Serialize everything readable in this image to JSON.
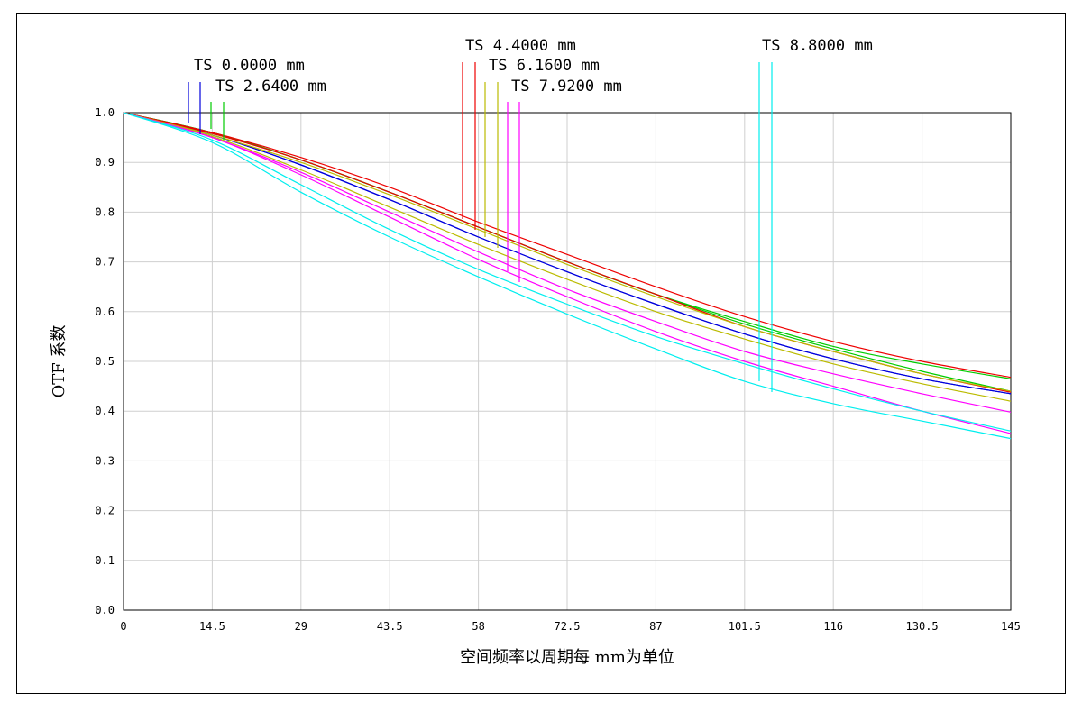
{
  "chart_data": {
    "type": "line",
    "title": "",
    "xlabel": "空间频率以周期每 mm为单位",
    "ylabel": "OTF 系数",
    "xlim": [
      0,
      145
    ],
    "ylim": [
      0,
      1.0
    ],
    "x_ticks": [
      0,
      14.5,
      29,
      43.5,
      58,
      72.5,
      87,
      101.5,
      116,
      130.5,
      145
    ],
    "x_tick_labels": [
      "0",
      "14.5",
      "29",
      "43.5",
      "58",
      "72.5",
      "87",
      "101.5",
      "116",
      "130.5",
      "145"
    ],
    "y_ticks": [
      0.0,
      0.1,
      0.2,
      0.3,
      0.4,
      0.5,
      0.6,
      0.7,
      0.8,
      0.9,
      1.0
    ],
    "y_tick_labels": [
      "0.0",
      "0.1",
      "0.2",
      "0.3",
      "0.4",
      "0.5",
      "0.6",
      "0.7",
      "0.8",
      "0.9",
      "1.0"
    ],
    "grid": true,
    "x": [
      0,
      14.5,
      29,
      43.5,
      58,
      72.5,
      87,
      101.5,
      116,
      130.5,
      145
    ],
    "fields": [
      {
        "label": "TS 0.0000 mm",
        "color": "#0000dd",
        "series": [
          {
            "values": [
              1.0,
              0.955,
              0.895,
              0.825,
              0.75,
              0.68,
              0.615,
              0.555,
              0.505,
              0.465,
              0.435
            ]
          },
          {
            "values": [
              1.0,
              0.955,
              0.895,
              0.825,
              0.75,
              0.68,
              0.615,
              0.555,
              0.505,
              0.465,
              0.435
            ]
          }
        ]
      },
      {
        "label": "TS 2.6400 mm",
        "color": "#00cc00",
        "series": [
          {
            "values": [
              1.0,
              0.96,
              0.905,
              0.84,
              0.77,
              0.7,
              0.635,
              0.575,
              0.525,
              0.48,
              0.44
            ]
          },
          {
            "values": [
              1.0,
              0.96,
              0.905,
              0.84,
              0.77,
              0.7,
              0.635,
              0.58,
              0.53,
              0.495,
              0.465
            ]
          }
        ]
      },
      {
        "label": "TS 4.4000 mm",
        "color": "#ee0000",
        "series": [
          {
            "values": [
              1.0,
              0.96,
              0.91,
              0.85,
              0.78,
              0.715,
              0.65,
              0.59,
              0.54,
              0.5,
              0.468
            ]
          },
          {
            "values": [
              1.0,
              0.958,
              0.905,
              0.84,
              0.77,
              0.7,
              0.635,
              0.57,
              0.52,
              0.475,
              0.438
            ]
          }
        ]
      },
      {
        "label": "TS 6.1600 mm",
        "color": "#bbbb00",
        "series": [
          {
            "values": [
              1.0,
              0.955,
              0.9,
              0.835,
              0.765,
              0.695,
              0.63,
              0.57,
              0.52,
              0.475,
              0.44
            ]
          },
          {
            "values": [
              1.0,
              0.952,
              0.885,
              0.81,
              0.735,
              0.665,
              0.6,
              0.545,
              0.495,
              0.455,
              0.42
            ]
          }
        ]
      },
      {
        "label": "TS 7.9200 mm",
        "color": "#ff00ff",
        "series": [
          {
            "values": [
              1.0,
              0.95,
              0.875,
              0.79,
              0.705,
              0.63,
              0.56,
              0.5,
              0.45,
              0.4,
              0.355
            ]
          },
          {
            "values": [
              1.0,
              0.95,
              0.88,
              0.8,
              0.72,
              0.645,
              0.58,
              0.52,
              0.475,
              0.435,
              0.398
            ]
          }
        ]
      },
      {
        "label": "TS 8.8000 mm",
        "color": "#00eeee",
        "series": [
          {
            "values": [
              1.0,
              0.94,
              0.84,
              0.75,
              0.67,
              0.595,
              0.525,
              0.46,
              0.415,
              0.38,
              0.345
            ]
          },
          {
            "values": [
              1.0,
              0.945,
              0.855,
              0.765,
              0.685,
              0.615,
              0.55,
              0.495,
              0.445,
              0.4,
              0.36
            ]
          }
        ]
      }
    ]
  }
}
